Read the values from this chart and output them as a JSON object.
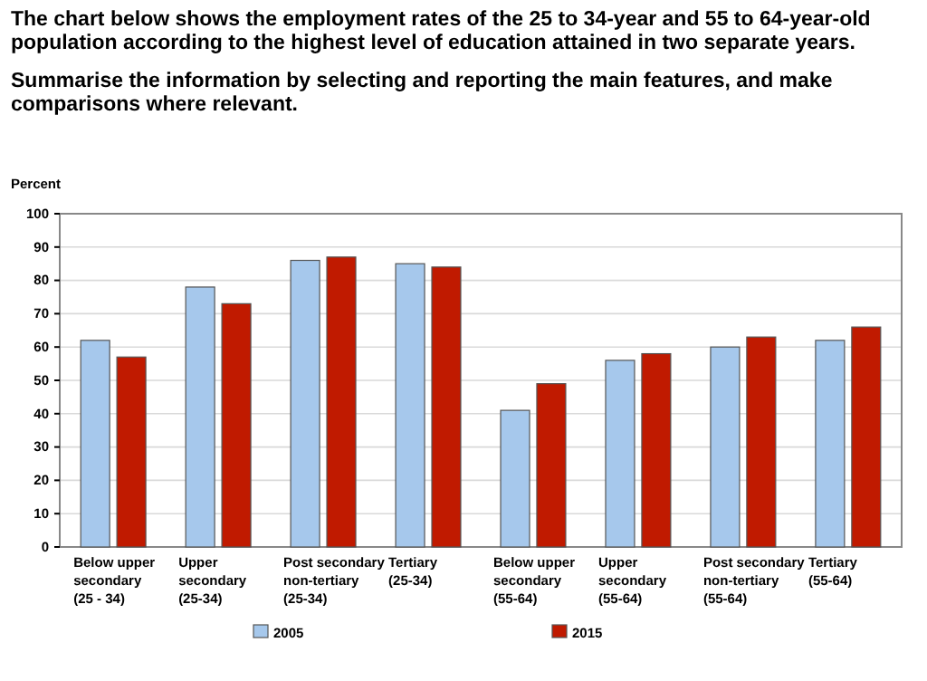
{
  "chart_data": {
    "type": "bar",
    "title": "The chart below shows the employment rates of the 25 to 34-year and 55 to 64-year-old population according to the highest level of education attained in two separate years.",
    "subtitle": "Summarise the information by selecting and reporting the main features, and make comparisons where relevant.",
    "ylabel": "Percent",
    "categories": [
      "Below upper\nsecondary\n(25 - 34)",
      "Upper\nsecondary\n(25-34)",
      "Post secondary\nnon-tertiary\n(25-34)",
      "Tertiary\n(25-34)",
      "Below upper\nsecondary\n(55-64)",
      "Upper\nsecondary\n(55-64)",
      "Post secondary\nnon-tertiary\n(55-64)",
      "Tertiary\n(55-64)"
    ],
    "series": [
      {
        "name": "2005",
        "color": "#a6c8ec",
        "values": [
          62,
          78,
          86,
          85,
          41,
          56,
          60,
          62
        ]
      },
      {
        "name": "2015",
        "color": "#c01a00",
        "values": [
          57,
          73,
          87,
          84,
          49,
          58,
          63,
          66
        ]
      }
    ],
    "ylim": [
      0,
      100
    ],
    "yticks": [
      0,
      10,
      20,
      30,
      40,
      50,
      60,
      70,
      80,
      90,
      100
    ],
    "grid": "y",
    "legend": "bottom"
  }
}
